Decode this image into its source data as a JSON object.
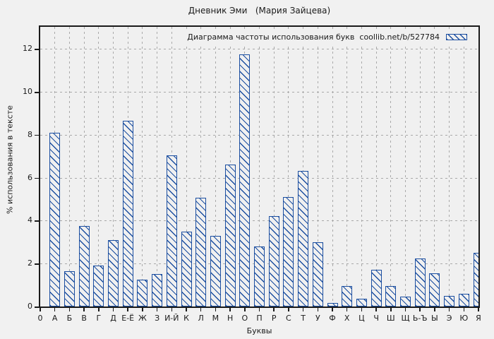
{
  "colors": {
    "accent": "#1b4ea0",
    "grid": "#a9a9a9",
    "axis": "#1a1a1a",
    "background": "#f1f1f1",
    "plot_background": "#f0f0f0"
  },
  "chart_data": {
    "type": "bar",
    "title": "Дневник Эми   (Мария Зайцева)",
    "legend": "Диаграмма частоты использования букв  coollib.net/b/527784",
    "xlabel": "Буквы",
    "ylabel": "% использования в тексте",
    "categories": [
      "0",
      "А",
      "Б",
      "В",
      "Г",
      "Д",
      "Е-Ё",
      "Ж",
      "З",
      "И-Й",
      "К",
      "Л",
      "М",
      "Н",
      "О",
      "П",
      "Р",
      "С",
      "Т",
      "У",
      "Ф",
      "Х",
      "Ц",
      "Ч",
      "Ш",
      "Щ",
      "Ь-Ъ",
      "Ы",
      "Э",
      "Ю",
      "Я"
    ],
    "values": [
      0,
      8.1,
      1.65,
      3.75,
      1.9,
      3.1,
      8.65,
      1.25,
      1.5,
      7.05,
      3.5,
      5.05,
      3.3,
      6.6,
      11.75,
      2.8,
      4.2,
      5.1,
      6.3,
      3.0,
      0.15,
      0.95,
      0.35,
      1.7,
      0.95,
      0.45,
      2.25,
      1.55,
      0.5,
      0.6,
      2.5
    ],
    "yticks": [
      0,
      2,
      4,
      6,
      8,
      10,
      12
    ],
    "ylim": [
      0,
      13
    ],
    "grid": true,
    "legend_position": "top-right-inside",
    "fill_style": "diagonal-hatch"
  }
}
